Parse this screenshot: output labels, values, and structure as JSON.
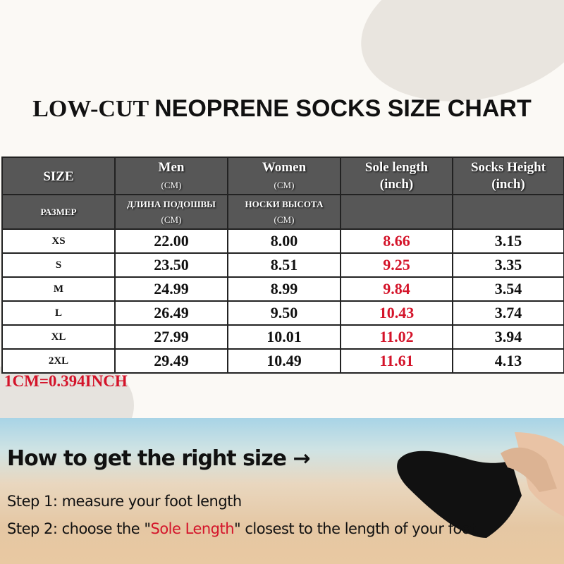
{
  "title": {
    "part1": "LOW-CUT",
    "part2": "NEOPRENE SOCKS SIZE CHART"
  },
  "table": {
    "header_row1": {
      "size": "SIZE",
      "men": "Men",
      "men_unit": "(CM)",
      "women": "Women",
      "women_unit": "(CM)",
      "sole": "Sole length",
      "sole_unit": "(inch)",
      "height": "Socks Height",
      "height_unit": "(inch)"
    },
    "header_row2": {
      "size": "РАЗМЕР",
      "men": "ДЛИНА ПОДОШВЫ",
      "men_unit": "(CM)",
      "women": "НОСКИ ВЫСОТА",
      "women_unit": "(CM)"
    },
    "rows": [
      {
        "size": "XS",
        "men": "22.00",
        "women": "8.00",
        "sole": "8.66",
        "height": "3.15"
      },
      {
        "size": "S",
        "men": "23.50",
        "women": "8.51",
        "sole": "9.25",
        "height": "3.35"
      },
      {
        "size": "M",
        "men": "24.99",
        "women": "8.99",
        "sole": "9.84",
        "height": "3.54"
      },
      {
        "size": "L",
        "men": "26.49",
        "women": "9.50",
        "sole": "10.43",
        "height": "3.74"
      },
      {
        "size": "XL",
        "men": "27.99",
        "women": "10.01",
        "sole": "11.02",
        "height": "3.94"
      },
      {
        "size": "2XL",
        "men": "29.49",
        "women": "10.49",
        "sole": "11.61",
        "height": "4.13"
      }
    ]
  },
  "conversion": "1CM=0.394INCH",
  "guide": {
    "heading": "How to get the right size →",
    "step1": "Step 1: measure your foot length",
    "step2_pre": "Step 2: choose the \"",
    "step2_highlight": "Sole Length",
    "step2_post": "\" closest to the length of your foot."
  },
  "colors": {
    "accent_red": "#d4142a",
    "header_bg": "#575757"
  }
}
